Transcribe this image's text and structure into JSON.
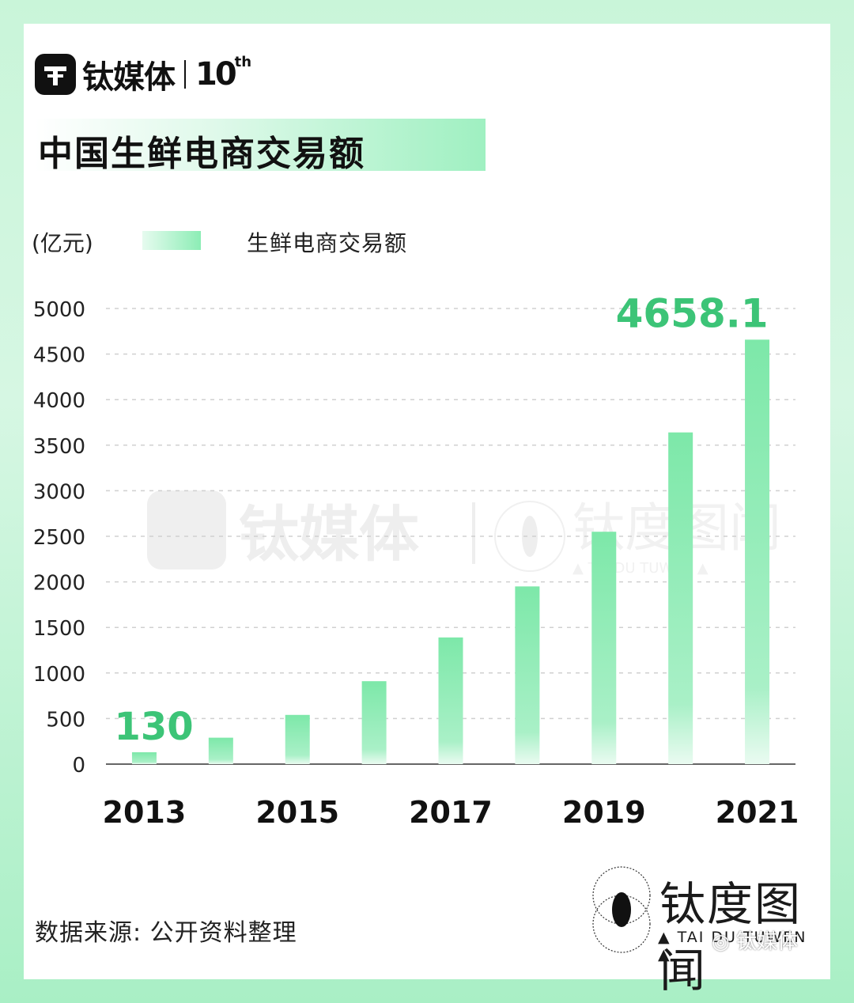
{
  "header": {
    "logo_text": "钛媒体",
    "logo_anniversary": "10",
    "logo_anniversary_suffix": "th"
  },
  "title": "中国生鲜电商交易额",
  "unit_label": "(亿元)",
  "legend_label": "生鲜电商交易额",
  "watermark": {
    "brand_a": "钛媒体",
    "brand_b": "钛度图闻",
    "brand_b_sub": "▲ TAI DU TUWEN ▲"
  },
  "source": "数据来源: 公开资料整理",
  "footer_brand": {
    "name": "钛度图闻",
    "sub": "▲ TAI DU TUWEN ▲"
  },
  "wechat_tag": "钛媒体",
  "colors": {
    "bar_top": "#7de8a9",
    "bar_bottom": "#e8fbf0",
    "highlight_label": "#3cc477",
    "grid": "#d0d0d0"
  },
  "chart_data": {
    "type": "bar",
    "title": "中国生鲜电商交易额",
    "ylabel": "(亿元)",
    "legend": [
      "生鲜电商交易额"
    ],
    "legend_position": "top-left",
    "grid": true,
    "ylim": [
      0,
      5000
    ],
    "yticks": [
      "0",
      "500",
      "1000",
      "1500",
      "2000",
      "2500",
      "3000",
      "3500",
      "4000",
      "4500",
      "5000"
    ],
    "categories": [
      "2013",
      "2014",
      "2015",
      "2016",
      "2017",
      "2018",
      "2019",
      "2020",
      "2021"
    ],
    "xtick_labels_shown": [
      "2013",
      "2015",
      "2017",
      "2019",
      "2021"
    ],
    "series": [
      {
        "name": "生鲜电商交易额",
        "values": [
          130,
          290,
          540,
          910,
          1390,
          1950,
          2550,
          3640,
          4658.1
        ]
      }
    ],
    "annotations": [
      {
        "category": "2013",
        "text": "130"
      },
      {
        "category": "2021",
        "text": "4658.1"
      }
    ]
  }
}
